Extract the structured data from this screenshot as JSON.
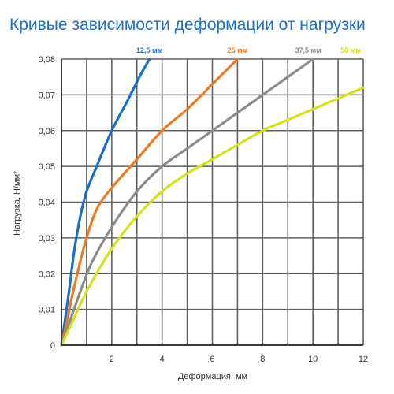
{
  "chart_data": {
    "type": "line",
    "title": "Кривые зависимости деформации от нагрузки",
    "xlabel": "Деформация, мм",
    "ylabel": "Нагрузка, Н/мм²",
    "xlim": [
      0,
      12
    ],
    "ylim": [
      0,
      0.08
    ],
    "grid": true,
    "legend": "top, labels above curve ends",
    "x_ticks": [
      "2",
      "4",
      "6",
      "8",
      "10",
      "12"
    ],
    "y_ticks": [
      "0",
      "0,01",
      "0,02",
      "0,03",
      "0,04",
      "0,05",
      "0,06",
      "0,07",
      "0,08"
    ],
    "series": [
      {
        "name": "12,5 мм",
        "color": "#1a6fc9",
        "points": [
          [
            0,
            0
          ],
          [
            0.1,
            0.005
          ],
          [
            0.3,
            0.015
          ],
          [
            0.5,
            0.026
          ],
          [
            0.75,
            0.036
          ],
          [
            1.0,
            0.043
          ],
          [
            1.4,
            0.05
          ],
          [
            2.0,
            0.06
          ],
          [
            2.6,
            0.068
          ],
          [
            3.1,
            0.075
          ],
          [
            3.5,
            0.08
          ]
        ]
      },
      {
        "name": "25 мм",
        "color": "#f07a21",
        "points": [
          [
            0,
            0
          ],
          [
            0.2,
            0.006
          ],
          [
            0.4,
            0.013
          ],
          [
            0.7,
            0.022
          ],
          [
            1.0,
            0.03
          ],
          [
            1.4,
            0.038
          ],
          [
            2.0,
            0.044
          ],
          [
            3.0,
            0.052
          ],
          [
            4.0,
            0.06
          ],
          [
            5.0,
            0.066
          ],
          [
            6.0,
            0.073
          ],
          [
            7.0,
            0.08
          ]
        ]
      },
      {
        "name": "37,5 мм",
        "color": "#8a8d8f",
        "points": [
          [
            0,
            0
          ],
          [
            0.3,
            0.006
          ],
          [
            0.7,
            0.014
          ],
          [
            1.2,
            0.023
          ],
          [
            2.0,
            0.033
          ],
          [
            3.0,
            0.043
          ],
          [
            4.0,
            0.05
          ],
          [
            5.0,
            0.055
          ],
          [
            6.0,
            0.06
          ],
          [
            7.0,
            0.065
          ],
          [
            8.0,
            0.07
          ],
          [
            9.0,
            0.075
          ],
          [
            10.0,
            0.08
          ]
        ]
      },
      {
        "name": "50 мм",
        "color": "#d4e11c",
        "points": [
          [
            0,
            0
          ],
          [
            0.4,
            0.006
          ],
          [
            1.0,
            0.015
          ],
          [
            2.0,
            0.027
          ],
          [
            3.0,
            0.036
          ],
          [
            4.0,
            0.043
          ],
          [
            5.0,
            0.048
          ],
          [
            6.0,
            0.052
          ],
          [
            7.0,
            0.056
          ],
          [
            8.0,
            0.06
          ],
          [
            9.0,
            0.063
          ],
          [
            10.0,
            0.066
          ],
          [
            11.0,
            0.069
          ],
          [
            12.0,
            0.072
          ]
        ]
      }
    ]
  }
}
